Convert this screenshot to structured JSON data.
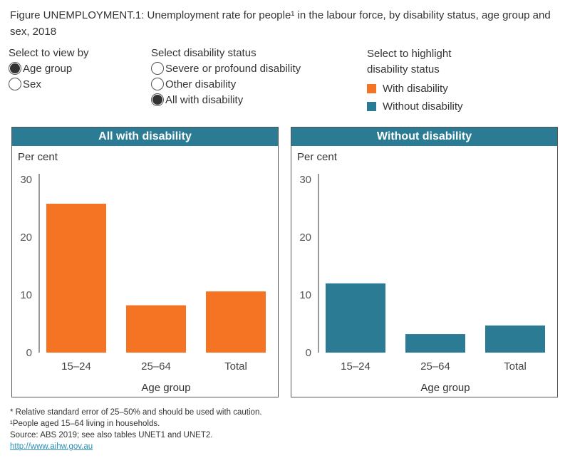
{
  "title": "Figure UNEMPLOYMENT.1: Unemployment rate for people¹ in the labour force, by disability status, age group and sex, 2018",
  "controls": {
    "view_by": {
      "label": "Select to view by",
      "options": [
        {
          "label": "Age group",
          "selected": true
        },
        {
          "label": "Sex",
          "selected": false
        }
      ]
    },
    "disability_status": {
      "label": "Select disability status",
      "options": [
        {
          "label": "Severe or profound disability",
          "selected": false
        },
        {
          "label": "Other disability",
          "selected": false
        },
        {
          "label": "All with disability",
          "selected": true
        }
      ]
    },
    "highlight": {
      "label_line1": "Select to highlight",
      "label_line2": "disability status",
      "items": [
        {
          "label": "With disability",
          "color": "#f47423"
        },
        {
          "label": "Without disability",
          "color": "#2a7b93"
        }
      ]
    }
  },
  "chart_data": [
    {
      "type": "bar",
      "title": "All with disability",
      "ylabel": "Per cent",
      "xlabel": "Age group",
      "ylim": [
        0,
        30
      ],
      "yticks": [
        0,
        10,
        20,
        30
      ],
      "categories": [
        "15–24",
        "25–64",
        "Total"
      ],
      "values": [
        25.8,
        8.2,
        10.6
      ],
      "color": "#f47423"
    },
    {
      "type": "bar",
      "title": "Without disability",
      "ylabel": "Per cent",
      "xlabel": "Age group",
      "ylim": [
        0,
        30
      ],
      "yticks": [
        0,
        10,
        20,
        30
      ],
      "categories": [
        "15–24",
        "25–64",
        "Total"
      ],
      "values": [
        12.0,
        3.2,
        4.7
      ],
      "color": "#2a7b93"
    }
  ],
  "notes": {
    "rse": "* Relative standard error of 25–50% and should be used with caution.",
    "footnote": "¹People aged 15–64 living in households.",
    "source": "Source: ABS 2019; see also tables UNET1 and UNET2.",
    "link": "http://www.aihw.gov.au"
  }
}
